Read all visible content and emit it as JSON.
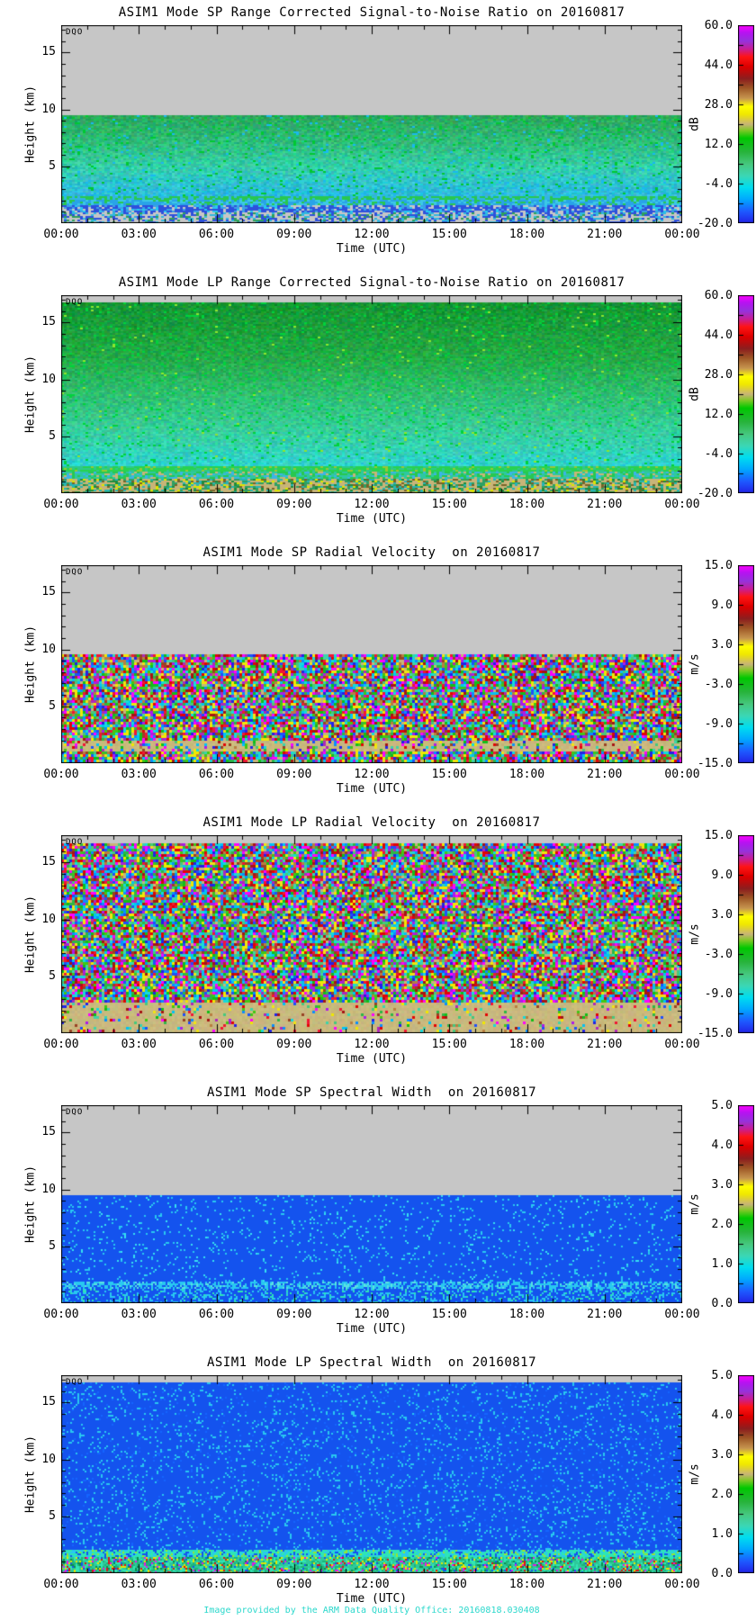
{
  "page": {
    "footer": "Image provided by the ARM Data Quality Office: 20160818.030408",
    "footer_color": "#2ad8cc",
    "background": "#ffffff",
    "no_data_color": "#c6c6c6"
  },
  "axes": {
    "stamp": "DQO",
    "x_label": "Time (UTC)",
    "y_label": "Height (km)",
    "x_tick_labels": [
      "00:00",
      "03:00",
      "06:00",
      "09:00",
      "12:00",
      "15:00",
      "18:00",
      "21:00",
      "00:00"
    ]
  },
  "colormap": {
    "stops": [
      [
        0,
        "#2222e6"
      ],
      [
        0.06,
        "#1e5aff"
      ],
      [
        0.12,
        "#00a8ff"
      ],
      [
        0.18,
        "#00ddf0"
      ],
      [
        0.24,
        "#3cd7b4"
      ],
      [
        0.3,
        "#46c87d"
      ],
      [
        0.36,
        "#28b43c"
      ],
      [
        0.43,
        "#00c800"
      ],
      [
        0.47,
        "#82c828"
      ],
      [
        0.5,
        "#c8b478"
      ],
      [
        0.55,
        "#f0e800"
      ],
      [
        0.59,
        "#ffff00"
      ],
      [
        0.63,
        "#c89650"
      ],
      [
        0.68,
        "#a05a28"
      ],
      [
        0.73,
        "#8c1e1e"
      ],
      [
        0.79,
        "#dc0000"
      ],
      [
        0.84,
        "#ff1414"
      ],
      [
        0.88,
        "#c81e96"
      ],
      [
        0.92,
        "#9632dc"
      ],
      [
        0.96,
        "#b414f0"
      ],
      [
        1,
        "#ff00ff"
      ]
    ]
  },
  "chart_data": [
    {
      "type": "heatmap",
      "id": "sp-snr",
      "seed": 11,
      "cell": [
        3,
        2
      ],
      "title": "ASIM1 Mode SP Range Corrected Signal-to-Noise Ratio on 20160817",
      "x": {
        "label": "Time (UTC)",
        "range_hours": [
          0,
          24
        ],
        "major_tick_hours": 3,
        "minor_tick_hours": 1,
        "tick_labels": [
          "00:00",
          "03:00",
          "06:00",
          "09:00",
          "12:00",
          "15:00",
          "18:00",
          "21:00",
          "00:00"
        ]
      },
      "y": {
        "label": "Height (km)",
        "range_km": [
          0,
          17.4
        ],
        "major_ticks_km": [
          5,
          10,
          15
        ],
        "minor_tick_km": 1
      },
      "colorbar": {
        "unit": "dB",
        "range": [
          -20,
          60
        ],
        "tick_labels": [
          "60.0",
          "44.0",
          "28.0",
          "12.0",
          "-4.0",
          "-20.0"
        ]
      },
      "data_top_km": 9.5,
      "bands": [
        {
          "from": 9.5,
          "to": 17.4,
          "kind": "flat",
          "color": "#c6c6c6"
        },
        {
          "from": 2.4,
          "to": 9.5,
          "kind": "grad",
          "jitter": 22,
          "stops": [
            [
              2.4,
              "#2db9e0"
            ],
            [
              3.5,
              "#2fc4cf"
            ],
            [
              5,
              "#35cfa8"
            ],
            [
              7,
              "#2fbe7d"
            ],
            [
              9.5,
              "#2aa95a"
            ]
          ],
          "speckles": [
            [
              "#00c832",
              0.05
            ],
            [
              "#19b9f0",
              0.03
            ]
          ]
        },
        {
          "from": 2.0,
          "to": 2.4,
          "kind": "mix",
          "colors": [
            "#28c850",
            "#32b4e6",
            "#2db9e0"
          ],
          "weights": [
            0.55,
            0.25,
            0.2
          ]
        },
        {
          "from": 1.55,
          "to": 2.0,
          "kind": "mix",
          "colors": [
            "#29a3e8",
            "#3cc8e6",
            "#28c850"
          ],
          "weights": [
            0.5,
            0.3,
            0.2
          ]
        },
        {
          "from": 0.9,
          "to": 1.55,
          "kind": "mix",
          "colors": [
            "#2e50dc",
            "#3ca0e6",
            "#c6c6c6",
            "#28c8f0"
          ],
          "weights": [
            0.5,
            0.2,
            0.18,
            0.12
          ]
        },
        {
          "from": 0,
          "to": 0.9,
          "kind": "mix",
          "colors": [
            "#c6c6c6",
            "#2e50dc",
            "#30b8e0",
            "#2ea05a"
          ],
          "weights": [
            0.45,
            0.25,
            0.18,
            0.12
          ]
        }
      ]
    },
    {
      "type": "heatmap",
      "id": "lp-snr",
      "seed": 22,
      "cell": [
        3,
        2
      ],
      "title": "ASIM1 Mode LP Range Corrected Signal-to-Noise Ratio on 20160817",
      "x": {
        "label": "Time (UTC)",
        "range_hours": [
          0,
          24
        ],
        "major_tick_hours": 3,
        "minor_tick_hours": 1,
        "tick_labels": [
          "00:00",
          "03:00",
          "06:00",
          "09:00",
          "12:00",
          "15:00",
          "18:00",
          "21:00",
          "00:00"
        ]
      },
      "y": {
        "label": "Height (km)",
        "range_km": [
          0,
          17.4
        ],
        "major_ticks_km": [
          5,
          10,
          15
        ],
        "minor_tick_km": 1
      },
      "colorbar": {
        "unit": "dB",
        "range": [
          -20,
          60
        ],
        "tick_labels": [
          "60.0",
          "44.0",
          "28.0",
          "12.0",
          "-4.0",
          "-20.0"
        ]
      },
      "data_top_km": 16.7,
      "bands": [
        {
          "from": 16.7,
          "to": 17.4,
          "kind": "flat",
          "color": "#c6c6c6"
        },
        {
          "from": 2.4,
          "to": 16.7,
          "kind": "grad",
          "jitter": 20,
          "stops": [
            [
              2.4,
              "#2fd2d2"
            ],
            [
              4,
              "#35d2b4"
            ],
            [
              6,
              "#37cd96"
            ],
            [
              9,
              "#2fbe6e"
            ],
            [
              12,
              "#23aa46"
            ],
            [
              16.7,
              "#149632"
            ]
          ],
          "speckles": [
            [
              "#00d23c",
              0.05
            ],
            [
              "#8ce62e",
              0.01
            ]
          ]
        },
        {
          "from": 1.9,
          "to": 2.4,
          "kind": "mix",
          "colors": [
            "#28d250",
            "#2ec88c",
            "#96c832"
          ],
          "weights": [
            0.6,
            0.25,
            0.15
          ]
        },
        {
          "from": 1.2,
          "to": 1.9,
          "kind": "mix",
          "colors": [
            "#2ec8a0",
            "#28c850",
            "#3cb4e6",
            "#c8b478"
          ],
          "weights": [
            0.35,
            0.3,
            0.2,
            0.15
          ]
        },
        {
          "from": 0,
          "to": 1.2,
          "kind": "mix",
          "colors": [
            "#c8b478",
            "#2ea064",
            "#28b4b4",
            "#786428",
            "#dce600",
            "#1e8c3c"
          ],
          "weights": [
            0.4,
            0.18,
            0.14,
            0.1,
            0.09,
            0.09
          ]
        }
      ]
    },
    {
      "type": "heatmap",
      "id": "sp-vel",
      "seed": 33,
      "cell": [
        3,
        3
      ],
      "title": "ASIM1 Mode SP Radial Velocity  on 20160817",
      "x": {
        "label": "Time (UTC)",
        "range_hours": [
          0,
          24
        ],
        "major_tick_hours": 3,
        "minor_tick_hours": 1,
        "tick_labels": [
          "00:00",
          "03:00",
          "06:00",
          "09:00",
          "12:00",
          "15:00",
          "18:00",
          "21:00",
          "00:00"
        ]
      },
      "y": {
        "label": "Height (km)",
        "range_km": [
          0,
          17.4
        ],
        "major_ticks_km": [
          5,
          10,
          15
        ],
        "minor_tick_km": 1
      },
      "colorbar": {
        "unit": "m/s",
        "range": [
          -15,
          15
        ],
        "tick_labels": [
          "15.0",
          "9.0",
          "3.0",
          "-3.0",
          "-9.0",
          "-15.0"
        ]
      },
      "data_top_km": 9.5,
      "bands": [
        {
          "from": 9.5,
          "to": 17.4,
          "kind": "flat",
          "color": "#c6c6c6"
        },
        {
          "from": 2.0,
          "to": 9.5,
          "kind": "rand"
        },
        {
          "from": 1.1,
          "to": 2.0,
          "kind": "tanspeck",
          "base": "#c9b97e",
          "density": 0.3
        },
        {
          "from": 0,
          "to": 1.1,
          "kind": "rand"
        }
      ]
    },
    {
      "type": "heatmap",
      "id": "lp-vel",
      "seed": 44,
      "cell": [
        3,
        3
      ],
      "title": "ASIM1 Mode LP Radial Velocity  on 20160817",
      "x": {
        "label": "Time (UTC)",
        "range_hours": [
          0,
          24
        ],
        "major_tick_hours": 3,
        "minor_tick_hours": 1,
        "tick_labels": [
          "00:00",
          "03:00",
          "06:00",
          "09:00",
          "12:00",
          "15:00",
          "18:00",
          "21:00",
          "00:00"
        ]
      },
      "y": {
        "label": "Height (km)",
        "range_km": [
          0,
          17.4
        ],
        "major_ticks_km": [
          5,
          10,
          15
        ],
        "minor_tick_km": 1
      },
      "colorbar": {
        "unit": "m/s",
        "range": [
          -15,
          15
        ],
        "tick_labels": [
          "15.0",
          "9.0",
          "3.0",
          "-3.0",
          "-9.0",
          "-15.0"
        ]
      },
      "data_top_km": 16.7,
      "bands": [
        {
          "from": 16.7,
          "to": 17.4,
          "kind": "flat",
          "color": "#c6c6c6"
        },
        {
          "from": 2.6,
          "to": 16.7,
          "kind": "rand"
        },
        {
          "from": 0,
          "to": 2.6,
          "kind": "tanspeck",
          "base": "#c9b97e",
          "density": 0.15
        }
      ]
    },
    {
      "type": "heatmap",
      "id": "sp-wid",
      "seed": 55,
      "cell": [
        2,
        2
      ],
      "title": "ASIM1 Mode SP Spectral Width  on 20160817",
      "x": {
        "label": "Time (UTC)",
        "range_hours": [
          0,
          24
        ],
        "major_tick_hours": 3,
        "minor_tick_hours": 1,
        "tick_labels": [
          "00:00",
          "03:00",
          "06:00",
          "09:00",
          "12:00",
          "15:00",
          "18:00",
          "21:00",
          "00:00"
        ]
      },
      "y": {
        "label": "Height (km)",
        "range_km": [
          0,
          17.4
        ],
        "major_ticks_km": [
          5,
          10,
          15
        ],
        "minor_tick_km": 1
      },
      "colorbar": {
        "unit": "m/s",
        "range": [
          0,
          5
        ],
        "tick_labels": [
          "5.0",
          "4.0",
          "3.0",
          "2.0",
          "1.0",
          "0.0"
        ]
      },
      "data_top_km": 9.5,
      "bands": [
        {
          "from": 9.5,
          "to": 17.4,
          "kind": "flat",
          "color": "#c6c6c6"
        },
        {
          "from": 1.9,
          "to": 9.5,
          "kind": "mix",
          "colors": [
            "#1453ee",
            "#28c8f0",
            "#36e1f0"
          ],
          "weights": [
            0.93,
            0.05,
            0.02
          ]
        },
        {
          "from": 1.2,
          "to": 1.9,
          "kind": "mix",
          "colors": [
            "#28c8f0",
            "#1453ee",
            "#5ae1e1"
          ],
          "weights": [
            0.45,
            0.4,
            0.15
          ]
        },
        {
          "from": 0,
          "to": 1.2,
          "kind": "mix",
          "colors": [
            "#1453ee",
            "#28c8f0",
            "#2ee6b4"
          ],
          "weights": [
            0.72,
            0.2,
            0.08
          ]
        }
      ]
    },
    {
      "type": "heatmap",
      "id": "lp-wid",
      "seed": 66,
      "cell": [
        2,
        2
      ],
      "title": "ASIM1 Mode LP Spectral Width  on 20160817",
      "x": {
        "label": "Time (UTC)",
        "range_hours": [
          0,
          24
        ],
        "major_tick_hours": 3,
        "minor_tick_hours": 1,
        "tick_labels": [
          "00:00",
          "03:00",
          "06:00",
          "09:00",
          "12:00",
          "15:00",
          "18:00",
          "21:00",
          "00:00"
        ]
      },
      "y": {
        "label": "Height (km)",
        "range_km": [
          0,
          17.4
        ],
        "major_ticks_km": [
          5,
          10,
          15
        ],
        "minor_tick_km": 1
      },
      "colorbar": {
        "unit": "m/s",
        "range": [
          0,
          5
        ],
        "tick_labels": [
          "5.0",
          "4.0",
          "3.0",
          "2.0",
          "1.0",
          "0.0"
        ]
      },
      "data_top_km": 16.7,
      "bands": [
        {
          "from": 16.7,
          "to": 17.4,
          "kind": "flat",
          "color": "#c6c6c6"
        },
        {
          "from": 2.1,
          "to": 16.7,
          "kind": "mix",
          "colors": [
            "#1453ee",
            "#28c8f0",
            "#1464ff"
          ],
          "weights": [
            0.88,
            0.09,
            0.03
          ]
        },
        {
          "from": 1.4,
          "to": 2.1,
          "kind": "mix",
          "colors": [
            "#2ee6b4",
            "#28c8f0",
            "#1453ee",
            "#96e632"
          ],
          "weights": [
            0.45,
            0.25,
            0.2,
            0.1
          ]
        },
        {
          "from": 0,
          "to": 1.4,
          "kind": "mix",
          "colors": [
            "#2ec89b",
            "#30e6b4",
            "#1eb478",
            "#e6e600",
            "#dc1414",
            "#e614e6",
            "#1453ee",
            "#0a8c50"
          ],
          "weights": [
            0.3,
            0.2,
            0.18,
            0.09,
            0.06,
            0.05,
            0.05,
            0.07
          ]
        }
      ]
    }
  ]
}
